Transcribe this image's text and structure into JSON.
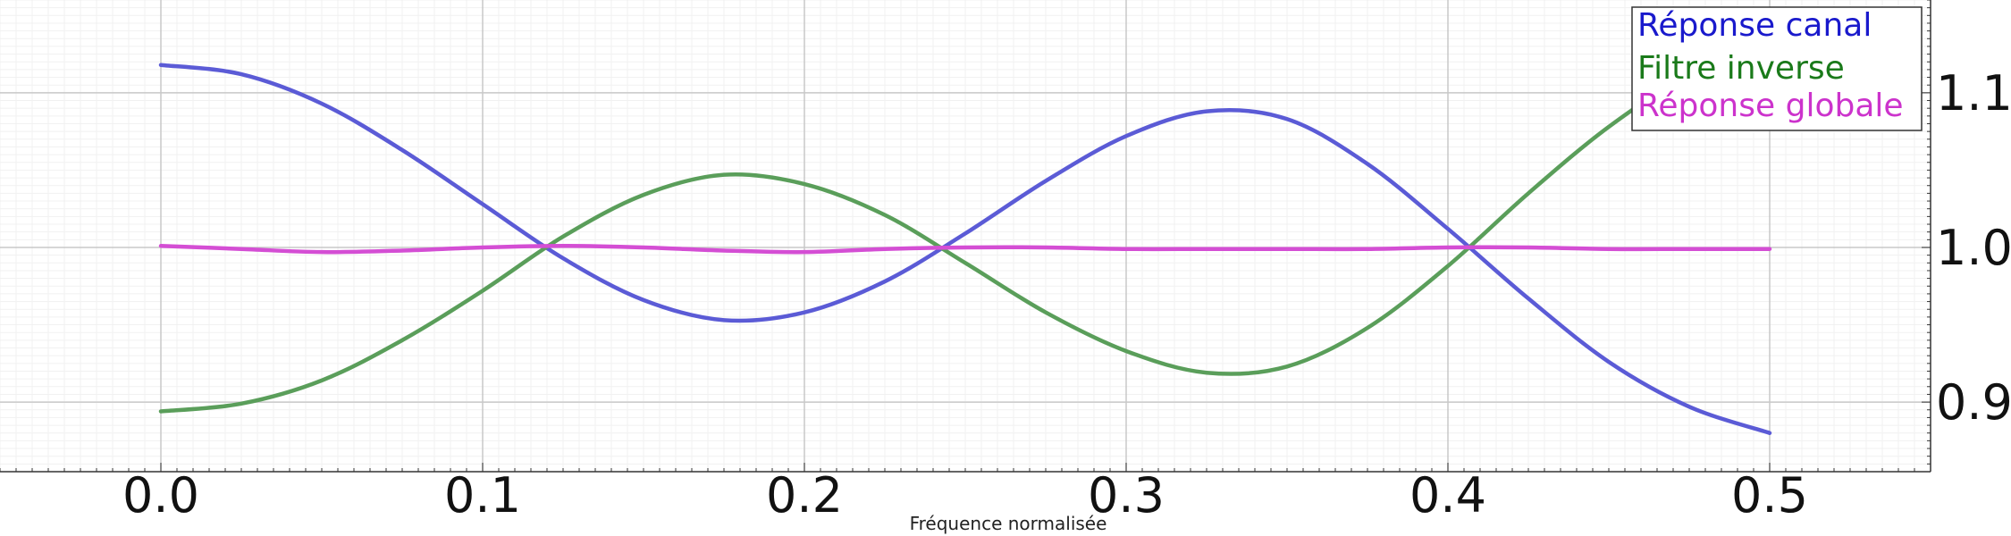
{
  "chart_data": {
    "type": "line",
    "title": "",
    "xlabel": "Fréquence normalisée",
    "ylabel": "",
    "xlim": [
      -0.05,
      0.55
    ],
    "ylim": [
      0.855,
      1.16
    ],
    "x_ticks": [
      0.0,
      0.1,
      0.2,
      0.3,
      0.4,
      0.5
    ],
    "x_tick_labels": [
      "0.0",
      "0.1",
      "0.2",
      "0.3",
      "0.4",
      "0.5"
    ],
    "y_ticks": [
      0.9,
      1.0,
      1.1
    ],
    "y_tick_labels": [
      "0.9",
      "1.0",
      "1.1"
    ],
    "y_axis_side": "right",
    "grid": true,
    "legend_position": "top-right",
    "x": [
      0.0,
      0.025,
      0.05,
      0.075,
      0.1,
      0.125,
      0.15,
      0.175,
      0.2,
      0.225,
      0.25,
      0.275,
      0.3,
      0.325,
      0.35,
      0.375,
      0.4,
      0.425,
      0.45,
      0.475,
      0.5
    ],
    "series": [
      {
        "name": "Réponse canal",
        "color": "#5b5bd6",
        "values": [
          1.118,
          1.112,
          1.093,
          1.063,
          1.028,
          0.993,
          0.966,
          0.953,
          0.958,
          0.978,
          1.009,
          1.043,
          1.072,
          1.088,
          1.083,
          1.054,
          1.012,
          0.967,
          0.926,
          0.897,
          0.88
        ]
      },
      {
        "name": "Filtre inverse",
        "color": "#5a9e5a",
        "values": [
          0.894,
          0.899,
          0.914,
          0.94,
          0.972,
          1.007,
          1.034,
          1.047,
          1.041,
          1.021,
          0.99,
          0.958,
          0.933,
          0.919,
          0.923,
          0.948,
          0.988,
          1.035,
          1.078,
          1.112,
          1.133
        ]
      },
      {
        "name": "Réponse globale",
        "color": "#d44ed4",
        "values": [
          1.001,
          0.999,
          0.997,
          0.998,
          1.0,
          1.001,
          1.0,
          0.998,
          0.997,
          0.999,
          1.0,
          1.0,
          0.999,
          0.999,
          0.999,
          0.999,
          1.0,
          1.0,
          0.999,
          0.999,
          0.999
        ]
      }
    ],
    "legend": {
      "title_colors": [
        "#1a1acc",
        "#1a7a1a",
        "#cc33cc"
      ]
    }
  }
}
